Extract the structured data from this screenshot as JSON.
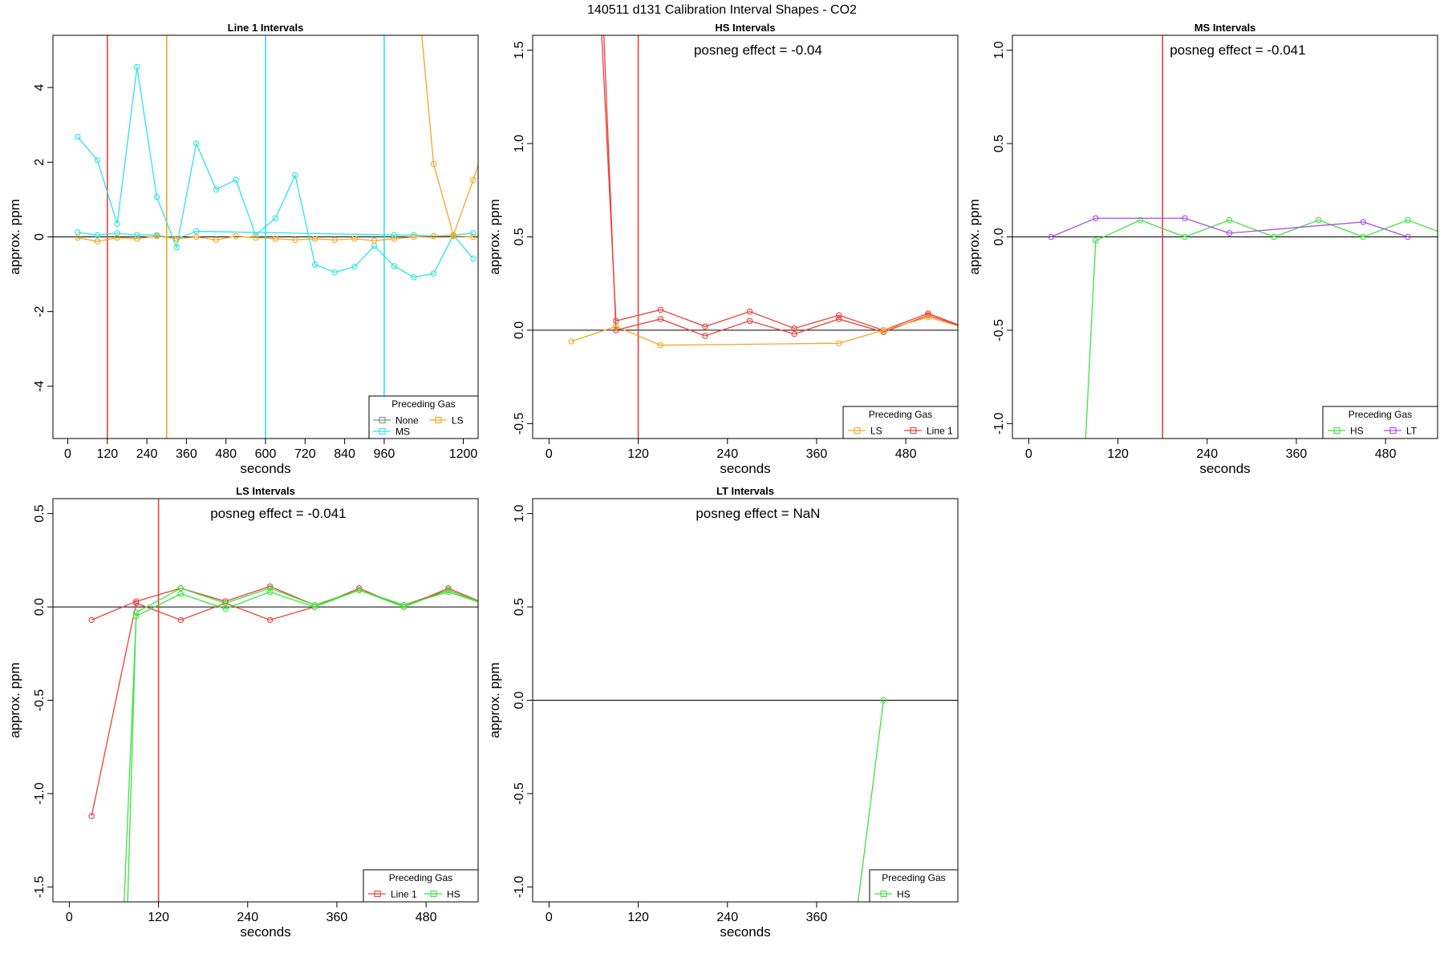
{
  "figure": {
    "title": "140511  d131   Calibration Interval Shapes - CO2"
  },
  "colors": {
    "None": "#8c8c8c",
    "LS": "#f5a623",
    "MS": "#2fe3e6",
    "Line 1": "#e8413a",
    "HS": "#3fe33f",
    "LT": "#a64de8",
    "zero_line": "#000000"
  },
  "chart_data": [
    {
      "type": "line",
      "title": "Line 1 Intervals",
      "xlabel": "seconds",
      "ylabel": "approx. ppm",
      "xlim": [
        -45,
        1245
      ],
      "ylim": [
        -5.4,
        5.4
      ],
      "xticks": [
        0,
        120,
        240,
        360,
        480,
        600,
        720,
        840,
        960,
        1200
      ],
      "xtick_labels": [
        "0",
        "120",
        "240",
        "360",
        "480",
        "600",
        "720",
        "840",
        "960",
        "1200"
      ],
      "yticks": [
        -4,
        -2,
        0,
        2,
        4
      ],
      "ytick_labels": [
        "-4",
        "-2",
        "0",
        "2",
        "4"
      ],
      "posneg": "",
      "vlines": [
        {
          "x": 120,
          "color_key": "Line 1"
        },
        {
          "x": 300,
          "color_key": "LS"
        },
        {
          "x": 600,
          "color_key": "MS"
        },
        {
          "x": 960,
          "color_key": "MS"
        }
      ],
      "legend": {
        "title": "Preceding Gas",
        "position": "bottom-right",
        "entries": [
          {
            "label": "None",
            "color_key": "None"
          },
          {
            "label": "LS",
            "color_key": "LS"
          },
          {
            "label": "MS",
            "color_key": "MS"
          }
        ]
      },
      "series": [
        {
          "color_key": "MS",
          "x": [
            30,
            90,
            150,
            210,
            270,
            330,
            390,
            450,
            510,
            570,
            630,
            690,
            750,
            810,
            870,
            930,
            990,
            1050,
            1110,
            1170,
            1230
          ],
          "y": [
            2.68,
            2.05,
            0.35,
            4.55,
            1.07,
            -0.28,
            2.5,
            1.27,
            1.53,
            0.05,
            0.5,
            1.65,
            -0.74,
            -0.95,
            -0.8,
            -0.24,
            -0.78,
            -1.08,
            -0.98,
            0.05,
            -0.58
          ]
        },
        {
          "color_key": "MS",
          "x": [
            30,
            90,
            150,
            210,
            270,
            330,
            390,
            990,
            1050,
            1110,
            1170,
            1230
          ],
          "y": [
            0.12,
            0.05,
            0.1,
            0.05,
            0.05,
            -0.05,
            0.15,
            0.05,
            0.05,
            0.02,
            0.05,
            0.1
          ]
        },
        {
          "color_key": "LS",
          "x": [
            30,
            90,
            150,
            210,
            270,
            330,
            390,
            450,
            510,
            570,
            630,
            690,
            750,
            810,
            870,
            930,
            990,
            1050,
            1110,
            1170,
            1230
          ],
          "y": [
            -0.02,
            -0.12,
            -0.02,
            -0.05,
            0.02,
            -0.05,
            0.0,
            -0.08,
            0.02,
            -0.02,
            -0.05,
            -0.08,
            -0.05,
            -0.08,
            -0.05,
            -0.1,
            -0.05,
            0.0,
            0.02,
            0.02,
            0.0
          ]
        },
        {
          "color_key": "LS",
          "x": [
            1072,
            1110,
            1170,
            1230,
            1260
          ],
          "y": [
            5.6,
            1.95,
            0.05,
            1.52,
            2.3
          ]
        }
      ]
    },
    {
      "type": "line",
      "title": "HS Intervals",
      "xlabel": "seconds",
      "ylabel": "approx. ppm",
      "xlim": [
        -22,
        550
      ],
      "ylim": [
        -0.58,
        1.58
      ],
      "xticks": [
        0,
        120,
        240,
        360,
        480
      ],
      "xtick_labels": [
        "0",
        "120",
        "240",
        "360",
        "480"
      ],
      "yticks": [
        -0.5,
        0.0,
        0.5,
        1.0,
        1.5
      ],
      "ytick_labels": [
        "-0.5",
        "0.0",
        "0.5",
        "1.0",
        "1.5"
      ],
      "posneg": "posneg effect = -0.04",
      "vlines": [
        {
          "x": 120,
          "color_key": "Line 1"
        }
      ],
      "legend": {
        "title": "Preceding Gas",
        "position": "bottom-right",
        "entries": [
          {
            "label": "LS",
            "color_key": "LS"
          },
          {
            "label": "Line 1",
            "color_key": "Line 1"
          }
        ]
      },
      "series": [
        {
          "color_key": "Line 1",
          "x": [
            70,
            90,
            150,
            210,
            270,
            330,
            390,
            450,
            510,
            570
          ],
          "y": [
            1.65,
            0.05,
            0.11,
            0.02,
            0.1,
            0.01,
            0.08,
            0.0,
            0.09,
            0.0
          ]
        },
        {
          "color_key": "Line 1",
          "x": [
            73,
            90,
            150,
            210,
            270,
            330,
            390,
            450,
            510,
            570
          ],
          "y": [
            1.65,
            0.0,
            0.06,
            -0.03,
            0.05,
            -0.02,
            0.06,
            -0.01,
            0.08,
            0.0
          ]
        },
        {
          "color_key": "LS",
          "x": [
            30,
            90,
            150,
            390,
            450,
            510,
            570
          ],
          "y": [
            -0.06,
            0.02,
            -0.08,
            -0.07,
            0.0,
            0.07,
            0.0
          ]
        }
      ]
    },
    {
      "type": "line",
      "title": "MS Intervals",
      "xlabel": "seconds",
      "ylabel": "approx. ppm",
      "xlim": [
        -22,
        550
      ],
      "ylim": [
        -1.08,
        1.08
      ],
      "xticks": [
        0,
        120,
        240,
        360,
        480
      ],
      "xtick_labels": [
        "0",
        "120",
        "240",
        "360",
        "480"
      ],
      "yticks": [
        -1.0,
        -0.5,
        0.0,
        0.5,
        1.0
      ],
      "ytick_labels": [
        "-1.0",
        "-0.5",
        "0.0",
        "0.5",
        "1.0"
      ],
      "posneg": "posneg effect = -0.041",
      "vlines": [
        {
          "x": 180,
          "color_key": "Line 1"
        }
      ],
      "legend": {
        "title": "Preceding Gas",
        "position": "bottom-right",
        "entries": [
          {
            "label": "HS",
            "color_key": "HS"
          },
          {
            "label": "LT",
            "color_key": "LT"
          }
        ]
      },
      "series": [
        {
          "color_key": "HS",
          "x": [
            75,
            90,
            150,
            210,
            270,
            330,
            390,
            450,
            510,
            570
          ],
          "y": [
            -1.2,
            -0.02,
            0.09,
            0.0,
            0.09,
            0.0,
            0.09,
            0.0,
            0.09,
            0.0
          ]
        },
        {
          "color_key": "LT",
          "x": [
            30,
            90,
            210,
            270,
            450,
            510
          ],
          "y": [
            0.0,
            0.1,
            0.1,
            0.02,
            0.08,
            0.0
          ]
        }
      ]
    },
    {
      "type": "line",
      "title": "LS Intervals",
      "xlabel": "seconds",
      "ylabel": "approx. ppm",
      "xlim": [
        -22,
        550
      ],
      "ylim": [
        -1.58,
        0.58
      ],
      "xticks": [
        0,
        120,
        240,
        360,
        480
      ],
      "xtick_labels": [
        "0",
        "120",
        "240",
        "360",
        "480"
      ],
      "yticks": [
        -1.5,
        -1.0,
        -0.5,
        0.0,
        0.5
      ],
      "ytick_labels": [
        "-1.5",
        "-1.0",
        "-0.5",
        "0.0",
        "0.5"
      ],
      "posneg": "posneg effect = -0.041",
      "vlines": [
        {
          "x": 120,
          "color_key": "Line 1"
        }
      ],
      "legend": {
        "title": "Preceding Gas",
        "position": "bottom-right",
        "entries": [
          {
            "label": "Line 1",
            "color_key": "Line 1"
          },
          {
            "label": "HS",
            "color_key": "HS"
          }
        ]
      },
      "series": [
        {
          "color_key": "Line 1",
          "x": [
            30,
            90,
            150,
            210,
            270,
            330,
            390,
            450,
            510,
            570
          ],
          "y": [
            -1.12,
            0.02,
            -0.07,
            0.02,
            -0.07,
            0.0,
            0.1,
            0.0,
            0.1,
            0.0
          ]
        },
        {
          "color_key": "Line 1",
          "x": [
            30,
            90,
            150,
            210,
            270,
            330,
            390,
            450,
            510,
            570
          ],
          "y": [
            -0.07,
            0.03,
            0.1,
            0.03,
            0.11,
            0.01,
            0.09,
            0.01,
            0.09,
            0.0
          ]
        },
        {
          "color_key": "HS",
          "x": [
            73,
            90,
            150,
            210,
            270,
            330,
            390,
            450,
            510,
            570
          ],
          "y": [
            -1.65,
            -0.05,
            0.07,
            -0.01,
            0.08,
            0.0,
            0.09,
            0.01,
            0.08,
            0.0
          ]
        },
        {
          "color_key": "HS",
          "x": [
            78,
            90,
            150,
            210,
            270,
            330,
            390,
            450,
            510,
            570
          ],
          "y": [
            -1.65,
            -0.03,
            0.1,
            0.02,
            0.1,
            0.01,
            0.09,
            0.0,
            0.09,
            0.0
          ]
        }
      ]
    },
    {
      "type": "line",
      "title": "LT Intervals",
      "xlabel": "seconds",
      "ylabel": "approx. ppm",
      "xlim": [
        -22,
        550
      ],
      "ylim": [
        -1.08,
        1.08
      ],
      "xticks": [
        0,
        120,
        240,
        360
      ],
      "xtick_labels": [
        "0",
        "120",
        "240",
        "360"
      ],
      "yticks": [
        -1.0,
        -0.5,
        0.0,
        0.5,
        1.0
      ],
      "ytick_labels": [
        "-1.0",
        "-0.5",
        "0.0",
        "0.5",
        "1.0"
      ],
      "posneg": "posneg effect = NaN",
      "vlines": [],
      "legend": {
        "title": "Preceding Gas",
        "position": "bottom-right",
        "entries": [
          {
            "label": "HS",
            "color_key": "HS"
          }
        ]
      },
      "series": [
        {
          "color_key": "HS",
          "x": [
            412,
            450
          ],
          "y": [
            -1.2,
            0.0
          ]
        }
      ]
    }
  ]
}
